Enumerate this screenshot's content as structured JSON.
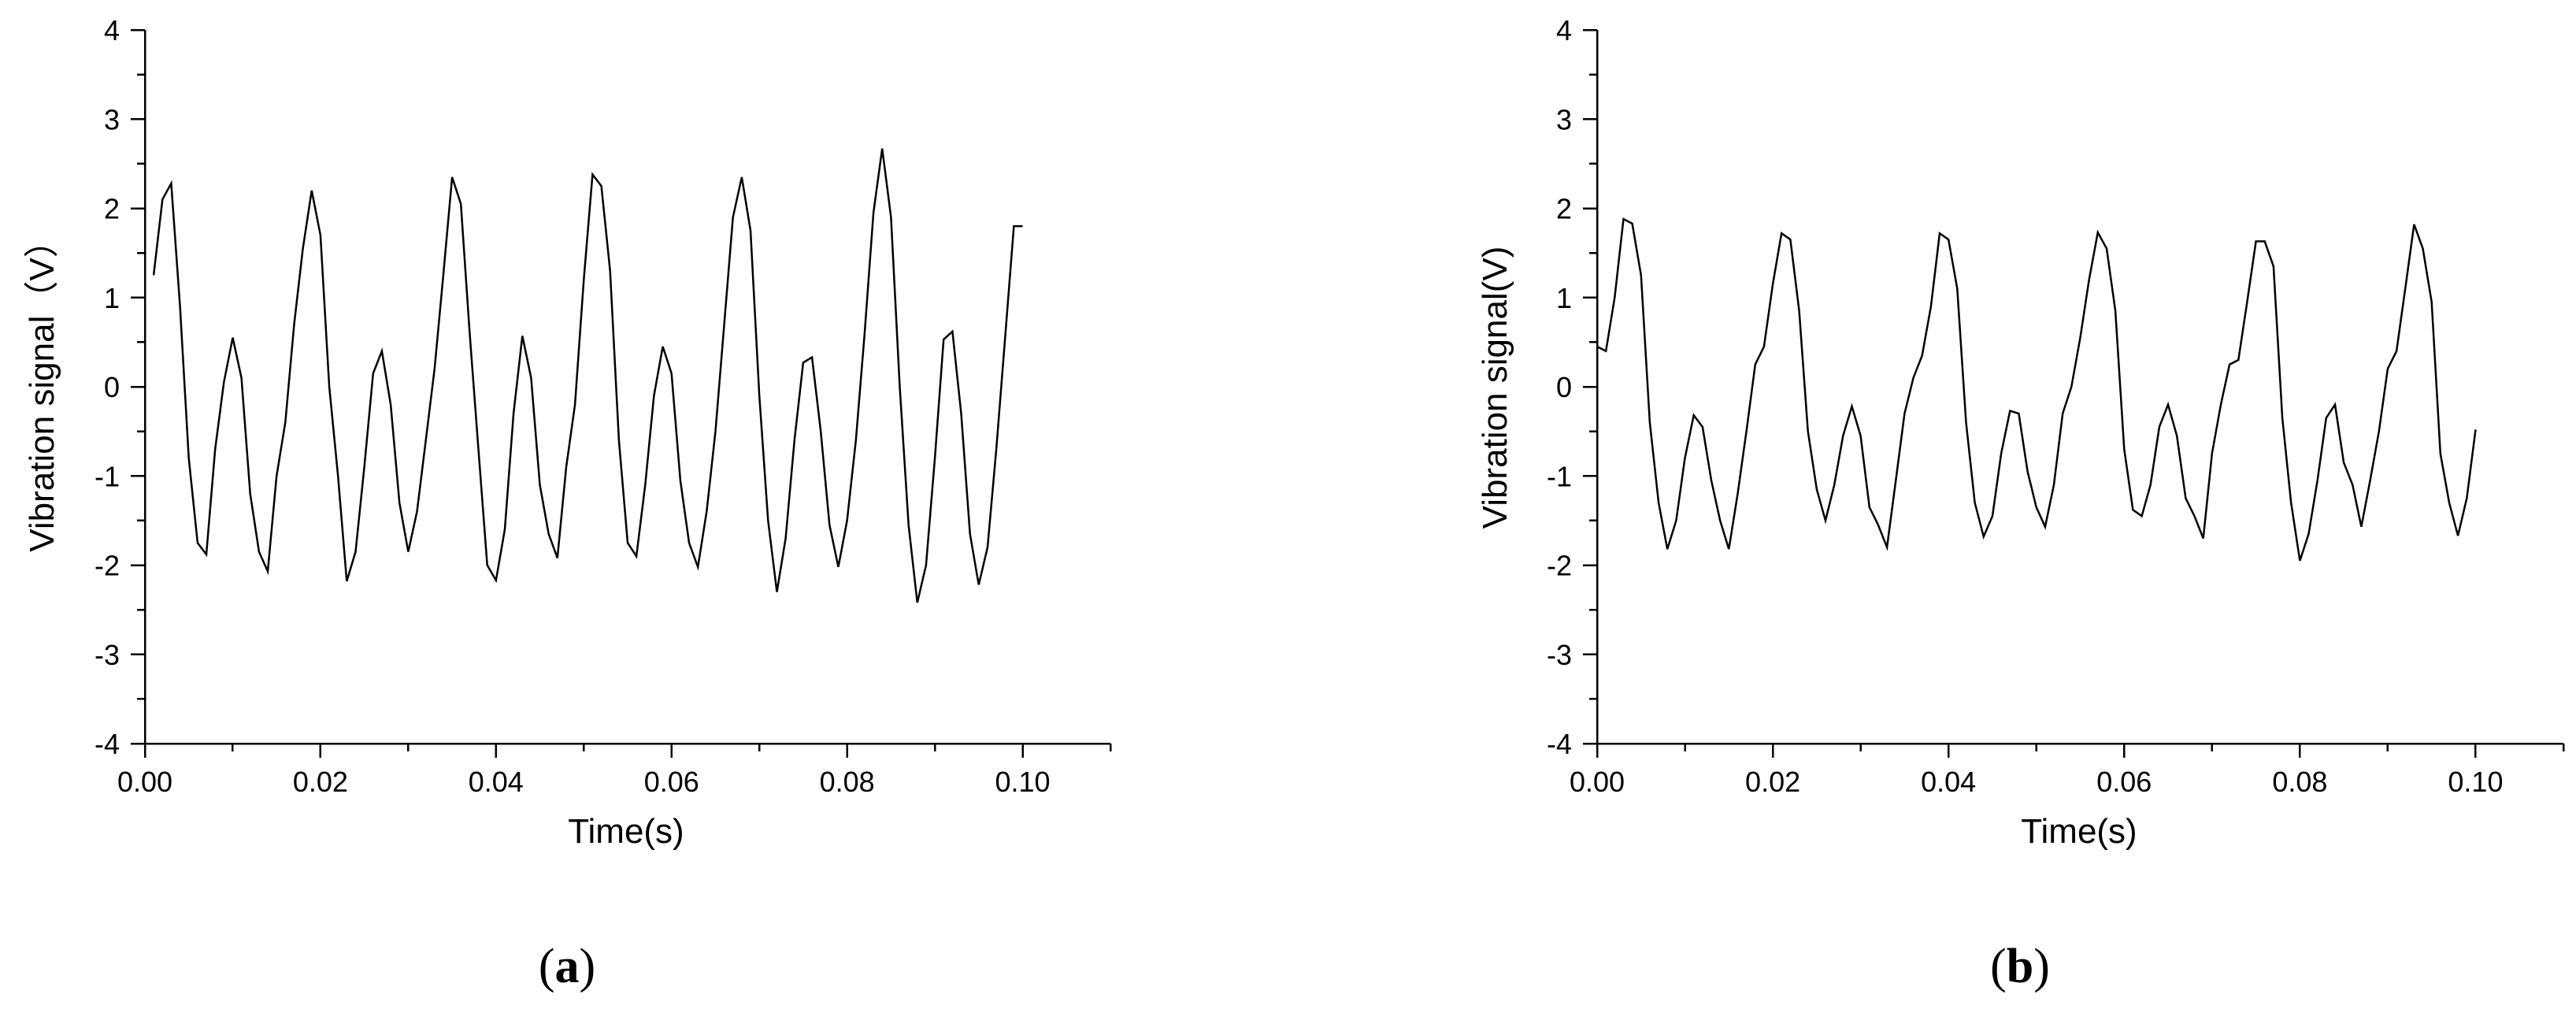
{
  "chart_data": [
    {
      "type": "line",
      "panel_label": {
        "open": "(",
        "letter": "a",
        "close": ")"
      },
      "title": "",
      "xlabel": "Time(s)",
      "ylabel": "Vibration signal（V）",
      "xlim": [
        0,
        0.11
      ],
      "ylim": [
        -4,
        4
      ],
      "xticks": [
        0.0,
        0.02,
        0.04,
        0.06,
        0.08,
        0.1
      ],
      "xtick_labels": [
        "0.00",
        "0.02",
        "0.04",
        "0.06",
        "0.08",
        "0.10"
      ],
      "yticks": [
        -4,
        -3,
        -2,
        -1,
        0,
        1,
        2,
        3,
        4
      ],
      "ytick_labels": [
        "-4",
        "-3",
        "-2",
        "-1",
        "0",
        "1",
        "2",
        "3",
        "4"
      ],
      "grid": false,
      "series": [
        {
          "color": "#000000",
          "x": [
            0.001,
            0.002,
            0.003,
            0.004,
            0.005,
            0.006,
            0.007,
            0.008,
            0.009,
            0.01,
            0.011,
            0.012,
            0.013,
            0.014,
            0.015,
            0.016,
            0.017,
            0.018,
            0.019,
            0.02,
            0.021,
            0.022,
            0.023,
            0.024,
            0.025,
            0.026,
            0.027,
            0.028,
            0.029,
            0.03,
            0.031,
            0.032,
            0.033,
            0.034,
            0.035,
            0.036,
            0.037,
            0.038,
            0.039,
            0.04,
            0.041,
            0.042,
            0.043,
            0.044,
            0.045,
            0.046,
            0.047,
            0.048,
            0.049,
            0.05,
            0.051,
            0.052,
            0.053,
            0.054,
            0.055,
            0.056,
            0.057,
            0.058,
            0.059,
            0.06,
            0.061,
            0.062,
            0.063,
            0.064,
            0.065,
            0.066,
            0.067,
            0.068,
            0.069,
            0.07,
            0.071,
            0.072,
            0.073,
            0.074,
            0.075,
            0.076,
            0.077,
            0.078,
            0.079,
            0.08,
            0.081,
            0.082,
            0.083,
            0.084,
            0.085,
            0.086,
            0.087,
            0.088,
            0.089,
            0.09,
            0.091,
            0.092,
            0.093,
            0.094,
            0.095,
            0.096,
            0.097,
            0.098,
            0.099,
            0.1
          ],
          "y": [
            1.25,
            2.1,
            2.28,
            0.9,
            -0.8,
            -1.75,
            -1.88,
            -0.7,
            0.05,
            0.55,
            0.1,
            -1.2,
            -1.85,
            -2.07,
            -1.0,
            -0.4,
            0.7,
            1.55,
            2.2,
            1.7,
            0.0,
            -1.0,
            -2.18,
            -1.85,
            -0.9,
            0.15,
            0.4,
            -0.2,
            -1.3,
            -1.85,
            -1.4,
            -0.6,
            0.2,
            1.25,
            2.35,
            2.05,
            0.6,
            -0.7,
            -2.0,
            -2.17,
            -1.6,
            -0.3,
            0.57,
            0.1,
            -1.1,
            -1.65,
            -1.92,
            -0.9,
            -0.2,
            1.2,
            2.38,
            2.25,
            1.3,
            -0.6,
            -1.75,
            -1.9,
            -1.1,
            -0.1,
            0.45,
            0.15,
            -1.05,
            -1.75,
            -2.02,
            -1.4,
            -0.5,
            0.7,
            1.9,
            2.35,
            1.75,
            -0.1,
            -1.5,
            -2.3,
            -1.7,
            -0.6,
            0.27,
            0.33,
            -0.5,
            -1.55,
            -2.02,
            -1.5,
            -0.6,
            0.6,
            1.95,
            2.67,
            1.9,
            0.0,
            -1.55,
            -2.42,
            -2.0,
            -0.8,
            0.53,
            0.62,
            -0.3,
            -1.65,
            -2.22,
            -1.8,
            -0.7,
            0.55,
            1.8,
            1.8
          ]
        }
      ]
    },
    {
      "type": "line",
      "panel_label": {
        "open": "(",
        "letter": "b",
        "close": ")"
      },
      "title": "",
      "xlabel": "Time(s)",
      "ylabel": "Vibration signal(V)",
      "xlim": [
        0,
        0.11
      ],
      "ylim": [
        -4,
        4
      ],
      "xticks": [
        0.0,
        0.02,
        0.04,
        0.06,
        0.08,
        0.1
      ],
      "xtick_labels": [
        "0.00",
        "0.02",
        "0.04",
        "0.06",
        "0.08",
        "0.10"
      ],
      "yticks": [
        -4,
        -3,
        -2,
        -1,
        0,
        1,
        2,
        3,
        4
      ],
      "ytick_labels": [
        "-4",
        "-3",
        "-2",
        "-1",
        "0",
        "1",
        "2",
        "3",
        "4"
      ],
      "grid": false,
      "series": [
        {
          "color": "#000000",
          "x": [
            0.0,
            0.001,
            0.002,
            0.003,
            0.004,
            0.005,
            0.006,
            0.007,
            0.008,
            0.009,
            0.01,
            0.011,
            0.012,
            0.013,
            0.014,
            0.015,
            0.016,
            0.017,
            0.018,
            0.019,
            0.02,
            0.021,
            0.022,
            0.023,
            0.024,
            0.025,
            0.026,
            0.027,
            0.028,
            0.029,
            0.03,
            0.031,
            0.032,
            0.033,
            0.034,
            0.035,
            0.036,
            0.037,
            0.038,
            0.039,
            0.04,
            0.041,
            0.042,
            0.043,
            0.044,
            0.045,
            0.046,
            0.047,
            0.048,
            0.049,
            0.05,
            0.051,
            0.052,
            0.053,
            0.054,
            0.055,
            0.056,
            0.057,
            0.058,
            0.059,
            0.06,
            0.061,
            0.062,
            0.063,
            0.064,
            0.065,
            0.066,
            0.067,
            0.068,
            0.069,
            0.07,
            0.071,
            0.072,
            0.073,
            0.074,
            0.075,
            0.076,
            0.077,
            0.078,
            0.079,
            0.08,
            0.081,
            0.082,
            0.083,
            0.084,
            0.085,
            0.086,
            0.087,
            0.088,
            0.089,
            0.09,
            0.091,
            0.092,
            0.093,
            0.094,
            0.095,
            0.096,
            0.097,
            0.098,
            0.099,
            0.1
          ],
          "y": [
            0.45,
            0.4,
            1.0,
            1.88,
            1.83,
            1.25,
            -0.4,
            -1.3,
            -1.82,
            -1.5,
            -0.8,
            -0.32,
            -0.45,
            -1.05,
            -1.5,
            -1.82,
            -1.2,
            -0.5,
            0.25,
            0.45,
            1.15,
            1.72,
            1.65,
            0.85,
            -0.5,
            -1.15,
            -1.5,
            -1.1,
            -0.55,
            -0.22,
            -0.55,
            -1.35,
            -1.55,
            -1.8,
            -1.05,
            -0.3,
            0.1,
            0.35,
            0.9,
            1.72,
            1.65,
            1.1,
            -0.4,
            -1.3,
            -1.68,
            -1.45,
            -0.75,
            -0.27,
            -0.3,
            -0.95,
            -1.35,
            -1.57,
            -1.1,
            -0.3,
            0.0,
            0.55,
            1.2,
            1.73,
            1.55,
            0.85,
            -0.7,
            -1.38,
            -1.45,
            -1.1,
            -0.45,
            -0.2,
            -0.55,
            -1.25,
            -1.45,
            -1.7,
            -0.75,
            -0.2,
            0.25,
            0.3,
            0.95,
            1.63,
            1.63,
            1.35,
            -0.35,
            -1.3,
            -1.95,
            -1.65,
            -1.05,
            -0.35,
            -0.2,
            -0.85,
            -1.1,
            -1.57,
            -1.05,
            -0.5,
            0.2,
            0.4,
            1.1,
            1.82,
            1.55,
            0.95,
            -0.75,
            -1.3,
            -1.67,
            -1.25,
            -0.48
          ]
        }
      ]
    }
  ]
}
